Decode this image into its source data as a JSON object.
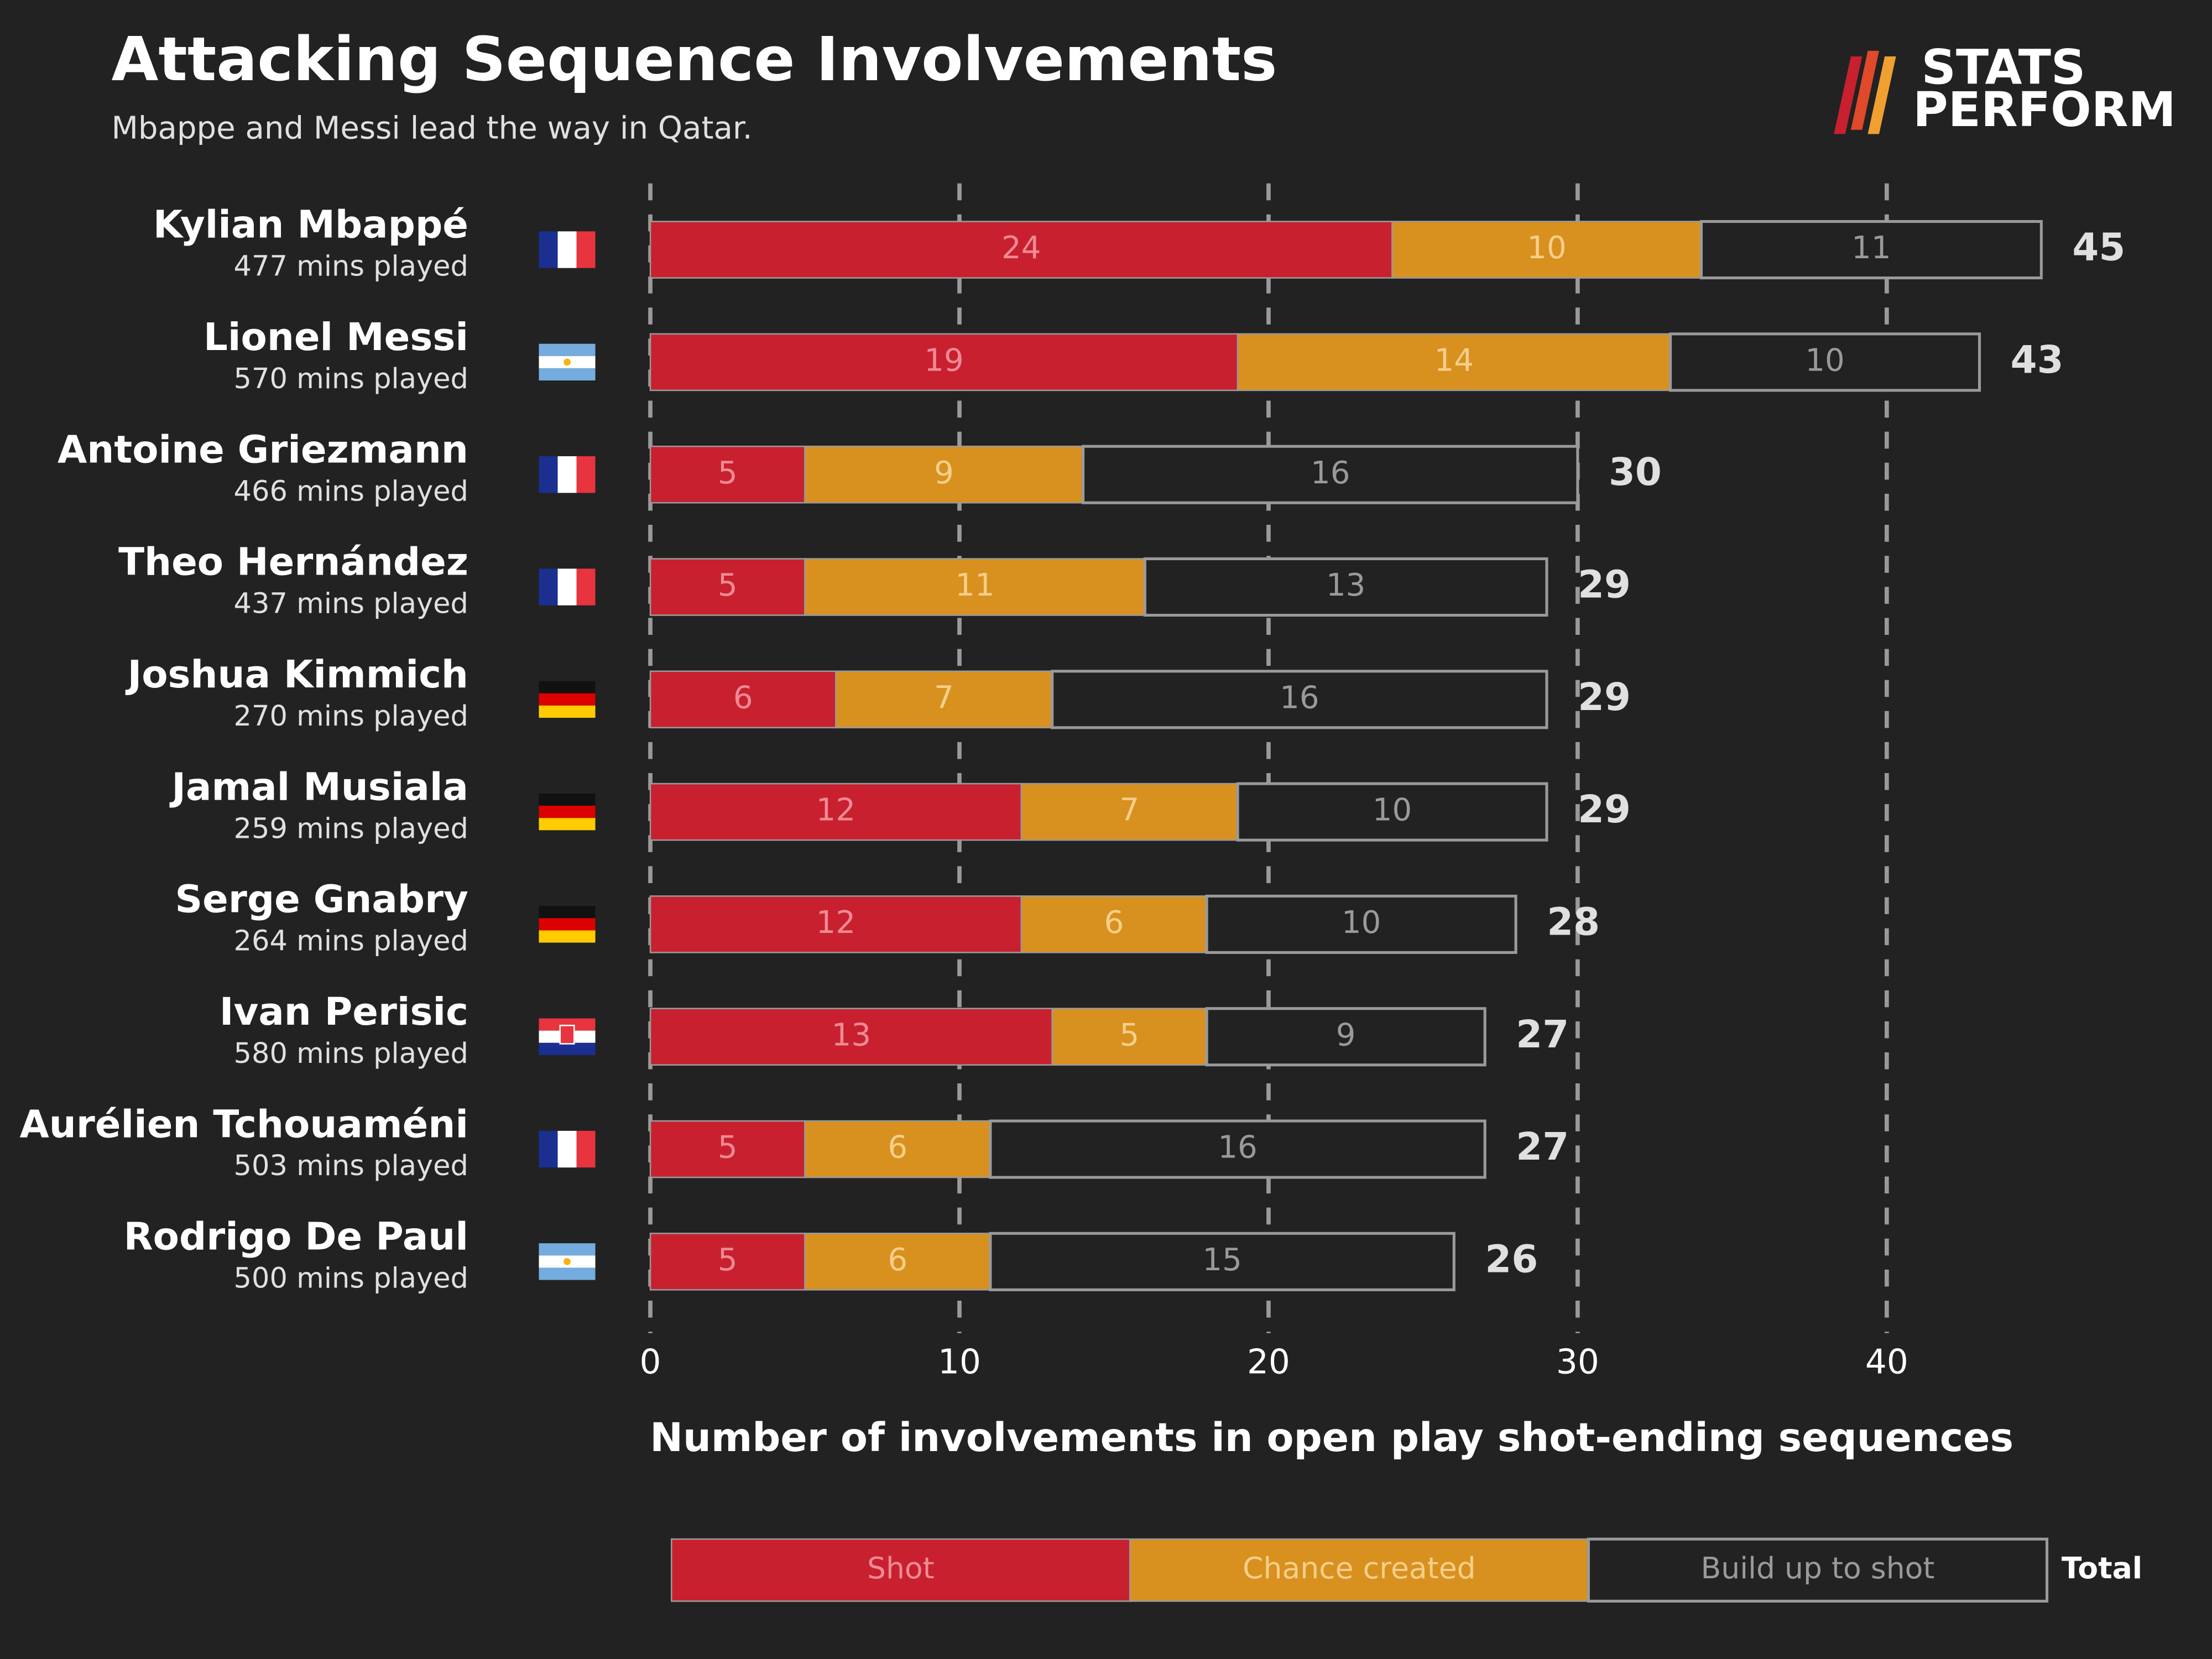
{
  "chart_data": {
    "type": "stacked-barh",
    "title": "Attacking Sequence Involvements",
    "subtitle": "Mbappe and Messi lead the way in Qatar.",
    "logo_lines": [
      "STATS",
      "PERFORM"
    ],
    "categories": [
      "Kylian Mbappé",
      "Lionel Messi",
      "Antoine Griezmann",
      "Theo Hernández",
      "Joshua Kimmich",
      "Jamal Musiala",
      "Serge Gnabry",
      "Ivan Perisic",
      "Aurélien Tchouaméni",
      "Rodrigo De Paul"
    ],
    "category_details": [
      "477 mins played",
      "570 mins played",
      "466 mins played",
      "437 mins played",
      "270 mins played",
      "259 mins played",
      "264 mins played",
      "580 mins played",
      "503 mins played",
      "500 mins played"
    ],
    "series": [
      {
        "name": "Shot",
        "color": "#c8202f",
        "values": [
          24,
          19,
          5,
          5,
          6,
          12,
          12,
          13,
          5,
          5
        ]
      },
      {
        "name": "Chance created",
        "color": "#d8901f",
        "values": [
          10,
          14,
          9,
          11,
          7,
          7,
          6,
          5,
          6,
          6
        ]
      },
      {
        "name": "Build up to shot",
        "color": "#222222",
        "values": [
          11,
          10,
          16,
          13,
          16,
          10,
          10,
          9,
          16,
          15
        ]
      }
    ],
    "totals": [
      45,
      43,
      30,
      29,
      29,
      29,
      28,
      27,
      27,
      26
    ],
    "total_label": "Total",
    "xlabel": "Number of involvements in open play shot-ending sequences",
    "xlim": [
      0,
      45
    ],
    "xticks": [
      0,
      10,
      20,
      30,
      40
    ],
    "grid": true
  }
}
